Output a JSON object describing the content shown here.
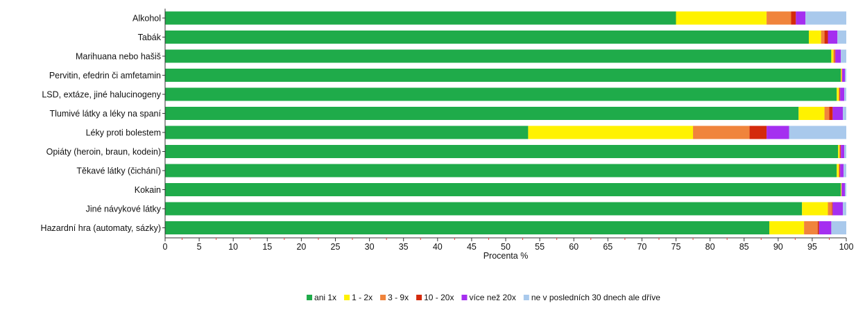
{
  "chart_data": {
    "type": "bar",
    "orientation": "horizontal",
    "stacked": true,
    "xlabel": "Procenta %",
    "ylabel": "",
    "xlim": [
      0,
      100
    ],
    "xticks": [
      "0",
      "5",
      "10",
      "15",
      "20",
      "25",
      "30",
      "35",
      "40",
      "45",
      "50",
      "55",
      "60",
      "65",
      "70",
      "75",
      "80",
      "85",
      "90",
      "95",
      "100"
    ],
    "grid": false,
    "legend_position": "bottom",
    "categories": [
      "Alkohol",
      "Tabák",
      "Marihuana nebo hašiš",
      "Pervitin, efedrin či amfetamin",
      "LSD, extáze, jiné halucinogeny",
      "Tlumivé látky a léky na spaní",
      "Léky proti bolestem",
      "Opiáty (heroin, braun, kodein)",
      "Těkavé látky (čichání)",
      "Kokain",
      "Jiné návykové látky",
      "Hazardní hra (automaty, sázky)"
    ],
    "series": [
      {
        "name": "ani 1x",
        "color": "#1fab4a",
        "values": [
          75.0,
          94.5,
          97.8,
          99.2,
          98.6,
          93.0,
          53.3,
          98.8,
          98.6,
          99.2,
          93.5,
          88.7
        ]
      },
      {
        "name": "1 - 2x",
        "color": "#fff200",
        "values": [
          13.3,
          1.8,
          0.3,
          0.1,
          0.3,
          3.8,
          24.2,
          0.2,
          0.3,
          0.1,
          3.8,
          5.1
        ]
      },
      {
        "name": "3 - 9x",
        "color": "#f0843c",
        "values": [
          3.6,
          0.5,
          0.2,
          0.1,
          0.1,
          0.7,
          8.3,
          0.1,
          0.1,
          0.0,
          0.6,
          2.0
        ]
      },
      {
        "name": "10 - 20x",
        "color": "#d42a0c",
        "values": [
          0.7,
          0.5,
          0.1,
          0.0,
          0.1,
          0.5,
          2.5,
          0.1,
          0.1,
          0.0,
          0.1,
          0.2
        ]
      },
      {
        "name": "více než 20x",
        "color": "#a52ff0",
        "values": [
          1.4,
          1.4,
          0.8,
          0.4,
          0.6,
          1.5,
          3.3,
          0.5,
          0.5,
          0.5,
          1.5,
          1.8
        ]
      },
      {
        "name": "ne v posledních 30 dnech ale dříve",
        "color": "#a9c9ec",
        "values": [
          6.0,
          1.3,
          0.8,
          0.2,
          0.3,
          0.5,
          8.4,
          0.3,
          0.4,
          0.2,
          0.5,
          2.2
        ]
      }
    ]
  }
}
